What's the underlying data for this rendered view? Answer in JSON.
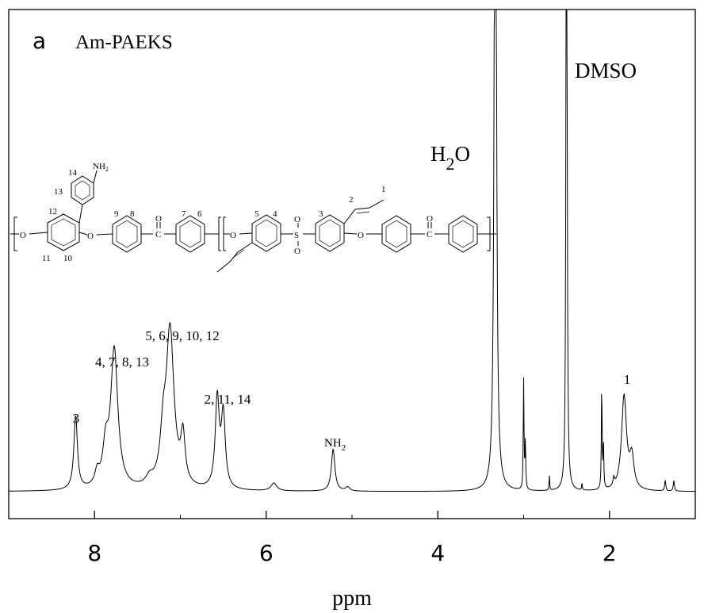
{
  "chart_data": {
    "type": "line",
    "panel_label": "a",
    "title": "Am-PAEKS",
    "xlabel": "ppm",
    "xlim": [
      9.0,
      1.0
    ],
    "x_reversed": true,
    "xticks": [
      {
        "value": 8,
        "label": "8"
      },
      {
        "value": 6,
        "label": "6"
      },
      {
        "value": 4,
        "label": "4"
      },
      {
        "value": 2,
        "label": "2"
      }
    ],
    "ylabel": "",
    "y_axis_visible": false,
    "grid": false,
    "line_color": "#000000",
    "series": [
      {
        "values_description_none": "",
        "peaks": [
          {
            "ppm": 8.22,
            "height": 0.28,
            "width": 0.025
          },
          {
            "ppm": 7.77,
            "height": 0.53,
            "width": 0.05
          },
          {
            "ppm": 7.87,
            "height": 0.14,
            "width": 0.04
          },
          {
            "ppm": 7.97,
            "height": 0.05,
            "width": 0.03
          },
          {
            "ppm": 7.36,
            "height": 0.03,
            "width": 0.05
          },
          {
            "ppm": 7.12,
            "height": 0.6,
            "width": 0.055
          },
          {
            "ppm": 7.2,
            "height": 0.16,
            "width": 0.04
          },
          {
            "ppm": 6.97,
            "height": 0.18,
            "width": 0.03
          },
          {
            "ppm": 6.57,
            "height": 0.34,
            "width": 0.028
          },
          {
            "ppm": 6.5,
            "height": 0.28,
            "width": 0.028
          },
          {
            "ppm": 5.91,
            "height": 0.03,
            "width": 0.04
          },
          {
            "ppm": 5.22,
            "height": 0.16,
            "width": 0.025
          },
          {
            "ppm": 5.05,
            "height": 0.015,
            "width": 0.03
          },
          {
            "ppm": 3.33,
            "height": 4.0,
            "width": 0.012
          },
          {
            "ppm": 3.0,
            "height": 0.42,
            "width": 0.005
          },
          {
            "ppm": 2.98,
            "height": 0.18,
            "width": 0.005
          },
          {
            "ppm": 2.7,
            "height": 0.06,
            "width": 0.004
          },
          {
            "ppm": 2.5,
            "height": 4.0,
            "width": 0.006
          },
          {
            "ppm": 2.32,
            "height": 0.03,
            "width": 0.004
          },
          {
            "ppm": 2.09,
            "height": 0.4,
            "width": 0.005
          },
          {
            "ppm": 2.07,
            "height": 0.18,
            "width": 0.005
          },
          {
            "ppm": 1.95,
            "height": 0.03,
            "width": 0.01
          },
          {
            "ppm": 1.83,
            "height": 0.36,
            "width": 0.035
          },
          {
            "ppm": 1.74,
            "height": 0.12,
            "width": 0.03
          },
          {
            "ppm": 1.35,
            "height": 0.04,
            "width": 0.008
          },
          {
            "ppm": 1.25,
            "height": 0.04,
            "width": 0.008
          }
        ]
      }
    ],
    "annotations": [
      {
        "text": "3",
        "ppm": 8.22
      },
      {
        "text": "4, 7, 8, 13",
        "ppm": 7.77
      },
      {
        "text": "5, 6, 9, 10, 12",
        "ppm": 7.12
      },
      {
        "text": "2, 11, 14",
        "ppm": 6.52
      },
      {
        "text": "NH",
        "sub": "2",
        "ppm": 5.22
      },
      {
        "text": "H",
        "sub": "2",
        "after": "O",
        "ppm": 3.33
      },
      {
        "text": "DMSO",
        "ppm": 2.5
      },
      {
        "text": "1",
        "ppm": 1.83
      }
    ]
  },
  "structure": {
    "labels": {
      "nh2": "NH",
      "nh2_sub": "2",
      "o": "O",
      "s": "S",
      "c": "C",
      "n1": "1",
      "n2": "2",
      "n3": "3",
      "n4": "4",
      "n5": "5",
      "n6": "6",
      "n7": "7",
      "n8": "8",
      "n9": "9",
      "n10": "10",
      "n11": "11",
      "n12": "12",
      "n13": "13",
      "n14": "14"
    }
  }
}
